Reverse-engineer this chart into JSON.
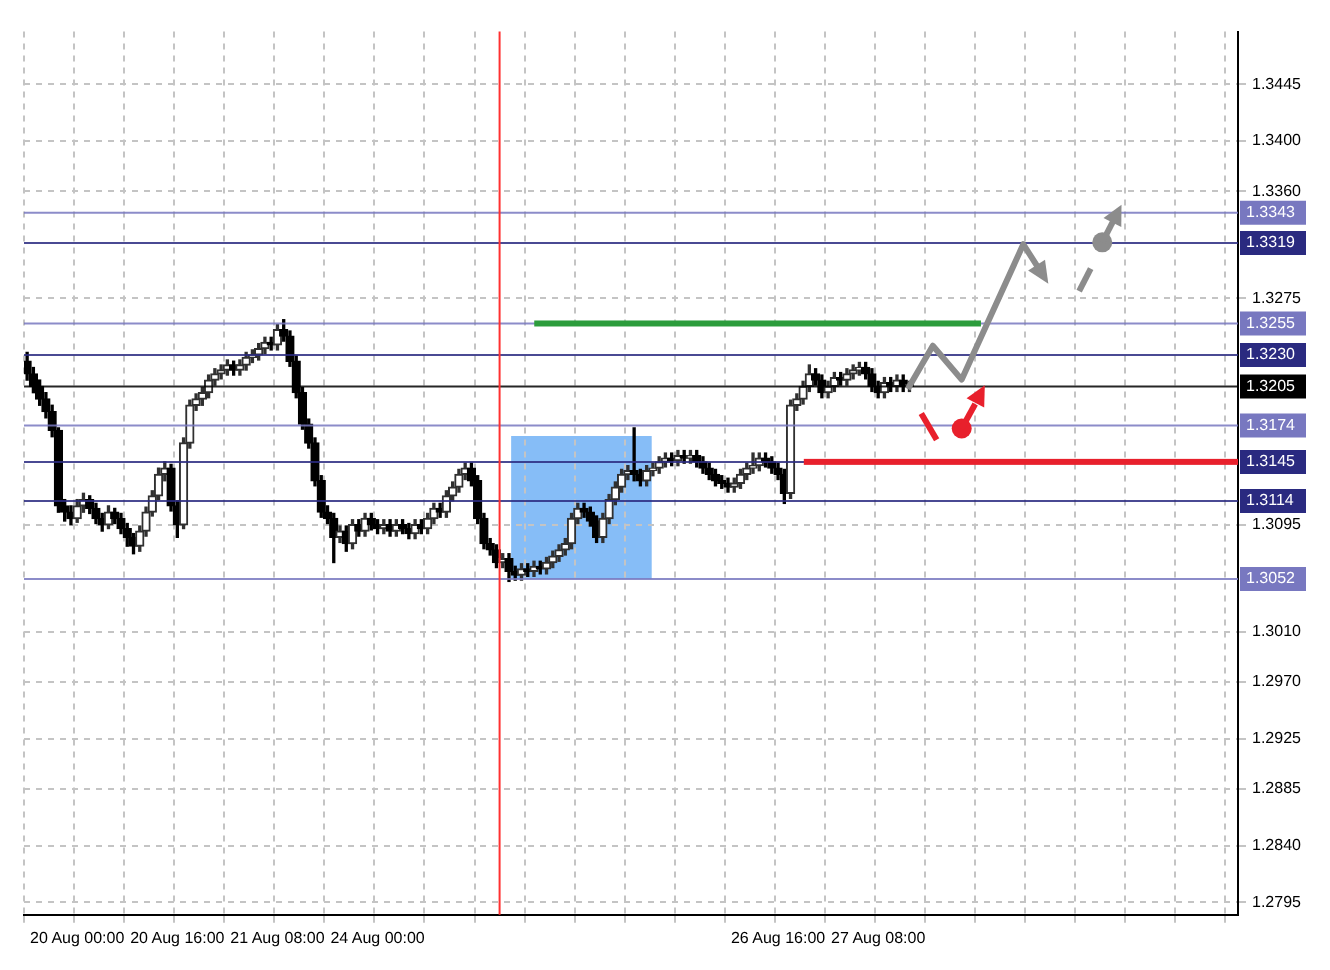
{
  "chart_data": {
    "type": "candlestick",
    "colors": [
      "#000000",
      "#000000",
      "#000000",
      "#000000",
      "#000000",
      "#000000",
      "#000000",
      "#000000",
      "#303030",
      "#303030",
      "#000000",
      "#000000",
      "#000000",
      "#303030",
      "#000000",
      "#000000",
      "#000000",
      "#000000",
      "#303030",
      "#303030",
      "#303030",
      "#303030",
      "#303030",
      "#000000",
      "#000000",
      "#303030",
      "#303030",
      "#303030",
      "#303030",
      "#303030",
      "#303030",
      "#303030",
      "#303030",
      "#000000",
      "#303030",
      "#303030",
      "#303030",
      "#303030",
      "#303030",
      "#000000",
      "#303030",
      "#000000",
      "#000000",
      "#000000",
      "#000000",
      "#000000",
      "#000000",
      "#000000",
      "#000000",
      "#000000",
      "#303030",
      "#000000",
      "#303030",
      "#000000",
      "#303030",
      "#000000",
      "#000000",
      "#303030",
      "#000000",
      "#303030",
      "#000000",
      "#000000",
      "#303030",
      "#000000",
      "#303030",
      "#303030",
      "#000000",
      "#303030",
      "#303030",
      "#303030",
      "#303030",
      "#000000",
      "#000000",
      "#000000",
      "#000000",
      "#000000",
      "#303030",
      "#000000",
      "#000000",
      "#303030",
      "#000000",
      "#303030",
      "#000000",
      "#303030",
      "#303030",
      "#303030",
      "#303030",
      "#303030",
      "#303030",
      "#000000",
      "#000000",
      "#000000",
      "#303030",
      "#303030",
      "#303030",
      "#303030",
      "#303030",
      "#000000",
      "#000000",
      "#303030",
      "#303030",
      "#303030",
      "#303030",
      "#000000",
      "#303030",
      "#000000",
      "#303030",
      "#000000",
      "#000000",
      "#000000",
      "#000000",
      "#000000",
      "#000000",
      "#303030",
      "#303030",
      "#303030",
      "#303030",
      "#303030",
      "#000000",
      "#000000",
      "#000000",
      "#000000",
      "#303030",
      "#303030",
      "#303030",
      "#303030",
      "#000000",
      "#000000",
      "#303030",
      "#303030",
      "#000000",
      "#303030",
      "#303030",
      "#303030",
      "#000000",
      "#000000",
      "#000000",
      "#303030",
      "#000000",
      "#303030",
      "#000000",
      "#303030",
      null,
      null,
      null,
      null,
      null,
      null,
      null,
      null,
      null,
      null,
      null,
      null,
      null,
      null,
      null,
      null,
      null,
      null,
      null,
      null,
      null,
      null,
      null,
      null,
      null,
      null,
      null,
      null,
      null,
      null,
      null,
      null,
      null,
      null,
      null,
      null,
      null,
      null,
      null,
      null,
      null,
      null,
      null,
      null,
      null,
      null,
      null,
      null,
      null,
      null,
      null,
      null
    ],
    "categories": [
      null,
      null,
      null,
      null,
      null,
      null,
      null,
      null,
      "20 Aug 00:00",
      null,
      null,
      null,
      null,
      null,
      null,
      null,
      null,
      null,
      null,
      null,
      null,
      null,
      null,
      null,
      "20 Aug 16:00",
      null,
      null,
      null,
      null,
      null,
      null,
      null,
      null,
      null,
      null,
      null,
      null,
      null,
      null,
      null,
      "21 Aug 08:00",
      null,
      null,
      null,
      null,
      null,
      null,
      null,
      null,
      null,
      null,
      null,
      null,
      null,
      null,
      null,
      "24 Aug 00:00",
      null,
      null,
      null,
      null,
      null,
      null,
      null,
      null,
      null,
      null,
      null,
      null,
      null,
      null,
      null,
      null,
      null,
      null,
      null,
      null,
      null,
      null,
      null,
      null,
      null,
      null,
      null,
      null,
      null,
      null,
      null,
      null,
      null,
      null,
      null,
      null,
      null,
      null,
      null,
      null,
      null,
      null,
      null,
      null,
      null,
      null,
      null,
      null,
      null,
      null,
      null,
      null,
      null,
      null,
      null,
      null,
      null,
      null,
      null,
      null,
      null,
      null,
      null,
      "26 Aug 16:00",
      null,
      null,
      null,
      null,
      null,
      null,
      null,
      null,
      null,
      null,
      null,
      null,
      null,
      null,
      null,
      "27 Aug 08:00",
      null,
      null,
      null,
      null,
      null,
      null,
      null,
      null,
      null,
      null,
      null,
      null,
      null,
      null,
      null,
      null,
      null,
      null,
      null,
      null,
      null,
      null,
      null,
      null,
      null,
      null,
      null,
      null,
      null,
      null,
      null,
      null,
      null,
      null,
      null,
      null,
      null,
      null,
      null,
      null,
      null,
      null,
      null,
      null,
      null,
      null,
      null,
      null,
      null,
      null,
      null,
      null,
      null,
      null,
      null,
      null,
      null
    ],
    "ohlc": [
      [
        1.3225,
        1.3232,
        1.321,
        1.3215
      ],
      [
        1.3215,
        1.322,
        1.32,
        1.3205
      ],
      [
        1.3205,
        1.321,
        1.319,
        1.3195
      ],
      [
        1.3195,
        1.32,
        1.318,
        1.3185
      ],
      [
        1.3185,
        1.319,
        1.3165,
        1.317
      ],
      [
        1.317,
        1.3172,
        1.3105,
        1.311
      ],
      [
        1.311,
        1.3115,
        1.3098,
        1.3105
      ],
      [
        1.3105,
        1.311,
        1.3095,
        1.31
      ],
      [
        1.31,
        1.3115,
        1.3097,
        1.311
      ],
      [
        1.311,
        1.312,
        1.3105,
        1.3115
      ],
      [
        1.3115,
        1.3118,
        1.3104,
        1.3108
      ],
      [
        1.3108,
        1.3112,
        1.3096,
        1.31
      ],
      [
        1.31,
        1.3104,
        1.309,
        1.3095
      ],
      [
        1.3095,
        1.311,
        1.3092,
        1.3105
      ],
      [
        1.3105,
        1.3108,
        1.3096,
        1.31
      ],
      [
        1.31,
        1.3104,
        1.3088,
        1.3092
      ],
      [
        1.3092,
        1.3096,
        1.3078,
        1.3085
      ],
      [
        1.3085,
        1.3088,
        1.3072,
        1.3078
      ],
      [
        1.3078,
        1.3094,
        1.3074,
        1.309
      ],
      [
        1.309,
        1.3109,
        1.3086,
        1.3105
      ],
      [
        1.3105,
        1.3122,
        1.3102,
        1.3118
      ],
      [
        1.3118,
        1.314,
        1.3115,
        1.3135
      ],
      [
        1.3135,
        1.3145,
        1.313,
        1.314
      ],
      [
        1.314,
        1.3143,
        1.3106,
        1.311
      ],
      [
        1.311,
        1.3114,
        1.3085,
        1.3095
      ],
      [
        1.3095,
        1.3164,
        1.3092,
        1.316
      ],
      [
        1.316,
        1.3194,
        1.3156,
        1.319
      ],
      [
        1.319,
        1.3199,
        1.3186,
        1.3195
      ],
      [
        1.3195,
        1.3204,
        1.319,
        1.32
      ],
      [
        1.32,
        1.3214,
        1.3196,
        1.321
      ],
      [
        1.321,
        1.3219,
        1.3206,
        1.3215
      ],
      [
        1.3215,
        1.3222,
        1.3211,
        1.3218
      ],
      [
        1.3218,
        1.3226,
        1.3214,
        1.3222
      ],
      [
        1.3222,
        1.3225,
        1.3214,
        1.3218
      ],
      [
        1.3218,
        1.3226,
        1.3214,
        1.3222
      ],
      [
        1.3222,
        1.3232,
        1.3218,
        1.3228
      ],
      [
        1.3228,
        1.3234,
        1.3224,
        1.323
      ],
      [
        1.323,
        1.3239,
        1.3226,
        1.3235
      ],
      [
        1.3235,
        1.3244,
        1.3231,
        1.324
      ],
      [
        1.324,
        1.3244,
        1.3234,
        1.3238
      ],
      [
        1.3238,
        1.3254,
        1.3234,
        1.325
      ],
      [
        1.325,
        1.3258,
        1.3241,
        1.3245
      ],
      [
        1.3245,
        1.3249,
        1.3221,
        1.3225
      ],
      [
        1.3225,
        1.3229,
        1.3196,
        1.32
      ],
      [
        1.32,
        1.3204,
        1.3171,
        1.3175
      ],
      [
        1.3175,
        1.3179,
        1.3156,
        1.316
      ],
      [
        1.316,
        1.3164,
        1.3126,
        1.313
      ],
      [
        1.313,
        1.3134,
        1.3101,
        1.3105
      ],
      [
        1.3105,
        1.311,
        1.3096,
        1.31
      ],
      [
        1.31,
        1.3104,
        1.3065,
        1.3085
      ],
      [
        1.3085,
        1.3094,
        1.3081,
        1.309
      ],
      [
        1.309,
        1.3094,
        1.3074,
        1.308
      ],
      [
        1.308,
        1.3099,
        1.3076,
        1.3095
      ],
      [
        1.3095,
        1.3099,
        1.3086,
        1.309
      ],
      [
        1.309,
        1.3104,
        1.3086,
        1.31
      ],
      [
        1.31,
        1.3104,
        1.3091,
        1.3095
      ],
      [
        1.3095,
        1.3099,
        1.3088,
        1.3092
      ],
      [
        1.3092,
        1.3099,
        1.3088,
        1.3095
      ],
      [
        1.3095,
        1.3099,
        1.3086,
        1.309
      ],
      [
        1.309,
        1.3099,
        1.3086,
        1.3095
      ],
      [
        1.3095,
        1.3099,
        1.3088,
        1.3092
      ],
      [
        1.3092,
        1.3096,
        1.3084,
        1.3088
      ],
      [
        1.3088,
        1.3099,
        1.3084,
        1.3095
      ],
      [
        1.3095,
        1.3099,
        1.3088,
        1.3092
      ],
      [
        1.3092,
        1.3104,
        1.3088,
        1.31
      ],
      [
        1.31,
        1.3112,
        1.3096,
        1.3108
      ],
      [
        1.3108,
        1.3112,
        1.3101,
        1.3105
      ],
      [
        1.3105,
        1.3122,
        1.3101,
        1.3118
      ],
      [
        1.3118,
        1.3129,
        1.3114,
        1.3125
      ],
      [
        1.3125,
        1.3139,
        1.3121,
        1.3135
      ],
      [
        1.3135,
        1.3144,
        1.3131,
        1.314
      ],
      [
        1.314,
        1.3144,
        1.3126,
        1.313
      ],
      [
        1.313,
        1.3134,
        1.3096,
        1.31
      ],
      [
        1.31,
        1.3104,
        1.3076,
        1.308
      ],
      [
        1.308,
        1.3084,
        1.3071,
        1.3075
      ],
      [
        1.3075,
        1.3079,
        1.3061,
        1.3065
      ],
      [
        1.3065,
        1.3072,
        1.3061,
        1.3068
      ],
      [
        1.3068,
        1.3072,
        1.305,
        1.3058
      ],
      [
        1.3058,
        1.3062,
        1.3051,
        1.3055
      ],
      [
        1.3055,
        1.3064,
        1.3051,
        1.306
      ],
      [
        1.306,
        1.3064,
        1.3054,
        1.3058
      ],
      [
        1.3058,
        1.3066,
        1.3054,
        1.3062
      ],
      [
        1.3062,
        1.3066,
        1.3056,
        1.306
      ],
      [
        1.306,
        1.3069,
        1.3056,
        1.3065
      ],
      [
        1.3065,
        1.3074,
        1.3061,
        1.307
      ],
      [
        1.307,
        1.3079,
        1.3066,
        1.3075
      ],
      [
        1.3075,
        1.3084,
        1.3071,
        1.308
      ],
      [
        1.308,
        1.3104,
        1.3076,
        1.31
      ],
      [
        1.31,
        1.3112,
        1.3096,
        1.3108
      ],
      [
        1.3108,
        1.3112,
        1.3101,
        1.3105
      ],
      [
        1.3105,
        1.3109,
        1.3094,
        1.3098
      ],
      [
        1.3098,
        1.3102,
        1.3081,
        1.3085
      ],
      [
        1.3085,
        1.3104,
        1.3081,
        1.31
      ],
      [
        1.31,
        1.3119,
        1.3096,
        1.3115
      ],
      [
        1.3115,
        1.3129,
        1.3111,
        1.3125
      ],
      [
        1.3125,
        1.3139,
        1.3121,
        1.3135
      ],
      [
        1.3135,
        1.3142,
        1.3131,
        1.3138
      ],
      [
        1.3138,
        1.3172,
        1.313,
        1.3135
      ],
      [
        1.3135,
        1.3139,
        1.3126,
        1.313
      ],
      [
        1.313,
        1.3142,
        1.3126,
        1.3138
      ],
      [
        1.3138,
        1.3144,
        1.3134,
        1.314
      ],
      [
        1.314,
        1.3149,
        1.3136,
        1.3145
      ],
      [
        1.3145,
        1.3152,
        1.3141,
        1.3148
      ],
      [
        1.3148,
        1.3152,
        1.3142,
        1.3146
      ],
      [
        1.3146,
        1.3154,
        1.3142,
        1.315
      ],
      [
        1.315,
        1.3154,
        1.3144,
        1.3148
      ],
      [
        1.3148,
        1.3154,
        1.3144,
        1.315
      ],
      [
        1.315,
        1.3154,
        1.3141,
        1.3145
      ],
      [
        1.3145,
        1.3149,
        1.3136,
        1.314
      ],
      [
        1.314,
        1.3144,
        1.3131,
        1.3135
      ],
      [
        1.3135,
        1.3139,
        1.3126,
        1.313
      ],
      [
        1.313,
        1.3134,
        1.3124,
        1.3128
      ],
      [
        1.3128,
        1.3132,
        1.3121,
        1.3125
      ],
      [
        1.3125,
        1.3132,
        1.3121,
        1.3128
      ],
      [
        1.3128,
        1.3139,
        1.3124,
        1.3135
      ],
      [
        1.3135,
        1.3144,
        1.3131,
        1.314
      ],
      [
        1.314,
        1.3152,
        1.3136,
        1.3142
      ],
      [
        1.3142,
        1.3152,
        1.3138,
        1.3148
      ],
      [
        1.3148,
        1.3152,
        1.3141,
        1.3145
      ],
      [
        1.3145,
        1.3149,
        1.3136,
        1.314
      ],
      [
        1.314,
        1.3144,
        1.3131,
        1.3135
      ],
      [
        1.3135,
        1.3139,
        1.3112,
        1.312
      ],
      [
        1.312,
        1.3194,
        1.3116,
        1.319
      ],
      [
        1.319,
        1.3199,
        1.3186,
        1.3195
      ],
      [
        1.3195,
        1.3209,
        1.3191,
        1.3205
      ],
      [
        1.3205,
        1.3222,
        1.3201,
        1.3215
      ],
      [
        1.3215,
        1.3219,
        1.3206,
        1.321
      ],
      [
        1.321,
        1.3214,
        1.3196,
        1.32
      ],
      [
        1.32,
        1.3209,
        1.3196,
        1.3205
      ],
      [
        1.3205,
        1.3216,
        1.3201,
        1.3212
      ],
      [
        1.3212,
        1.3216,
        1.3206,
        1.321
      ],
      [
        1.321,
        1.3219,
        1.3206,
        1.3215
      ],
      [
        1.3215,
        1.3222,
        1.3211,
        1.3218
      ],
      [
        1.3218,
        1.3224,
        1.3214,
        1.322
      ],
      [
        1.322,
        1.3224,
        1.3211,
        1.3215
      ],
      [
        1.3215,
        1.3219,
        1.3201,
        1.3205
      ],
      [
        1.3205,
        1.3209,
        1.3196,
        1.32
      ],
      [
        1.32,
        1.3212,
        1.3196,
        1.3208
      ],
      [
        1.3208,
        1.3212,
        1.3201,
        1.3205
      ],
      [
        1.3205,
        1.3214,
        1.3201,
        1.321
      ],
      [
        1.321,
        1.3214,
        1.3201,
        1.3205
      ],
      [
        1.3205,
        1.3209,
        1.3201,
        1.3205
      ],
      null,
      null,
      null,
      null,
      null,
      null,
      null,
      null,
      null,
      null,
      null,
      null,
      null,
      null,
      null,
      null,
      null,
      null,
      null,
      null,
      null,
      null,
      null,
      null,
      null,
      null,
      null,
      null,
      null,
      null,
      null,
      null,
      null,
      null,
      null,
      null,
      null,
      null,
      null,
      null,
      null,
      null,
      null,
      null,
      null,
      null,
      null,
      null,
      null,
      null,
      null,
      null
    ],
    "ylim": [
      1.2785,
      1.3487
    ],
    "yticks": [
      1.3445,
      {
        "value": 1.34,
        "label": "1.3400"
      },
      {
        "value": 1.336,
        "label": "1.3360"
      },
      1.3275,
      1.3095,
      {
        "value": 1.301,
        "label": "1.3010"
      },
      {
        "value": 1.297,
        "label": "1.2970"
      },
      1.2925,
      1.2885,
      {
        "value": 1.284,
        "label": "1.2840"
      },
      1.2795
    ],
    "grid": true,
    "legend": false,
    "ref_lines": [
      {
        "axis": "y",
        "value": 1.3343,
        "label": "1.3343",
        "color": "#7878c0"
      },
      {
        "axis": "y",
        "value": 1.3319,
        "label": "1.3319",
        "color": "#2a2a80"
      },
      {
        "axis": "y",
        "value": 1.3255,
        "label": "1.3255",
        "color": "#7878c0"
      },
      {
        "axis": "y",
        "value": 1.323,
        "label": "1.3230",
        "color": "#2a2a80"
      },
      {
        "axis": "y",
        "value": 1.3205,
        "label": "1.3205",
        "color": "#000000"
      },
      {
        "axis": "y",
        "value": 1.3174,
        "label": "1.3174",
        "color": "#7878c0"
      },
      {
        "axis": "y",
        "value": 1.3145,
        "label": "1.3145",
        "color": "#2a2a80"
      },
      {
        "axis": "y",
        "value": 1.3114,
        "label": "1.3114",
        "color": "#2a2a80"
      },
      {
        "axis": "y",
        "value": 1.3052,
        "label": "1.3052",
        "color": "#7878c0"
      }
    ]
  }
}
